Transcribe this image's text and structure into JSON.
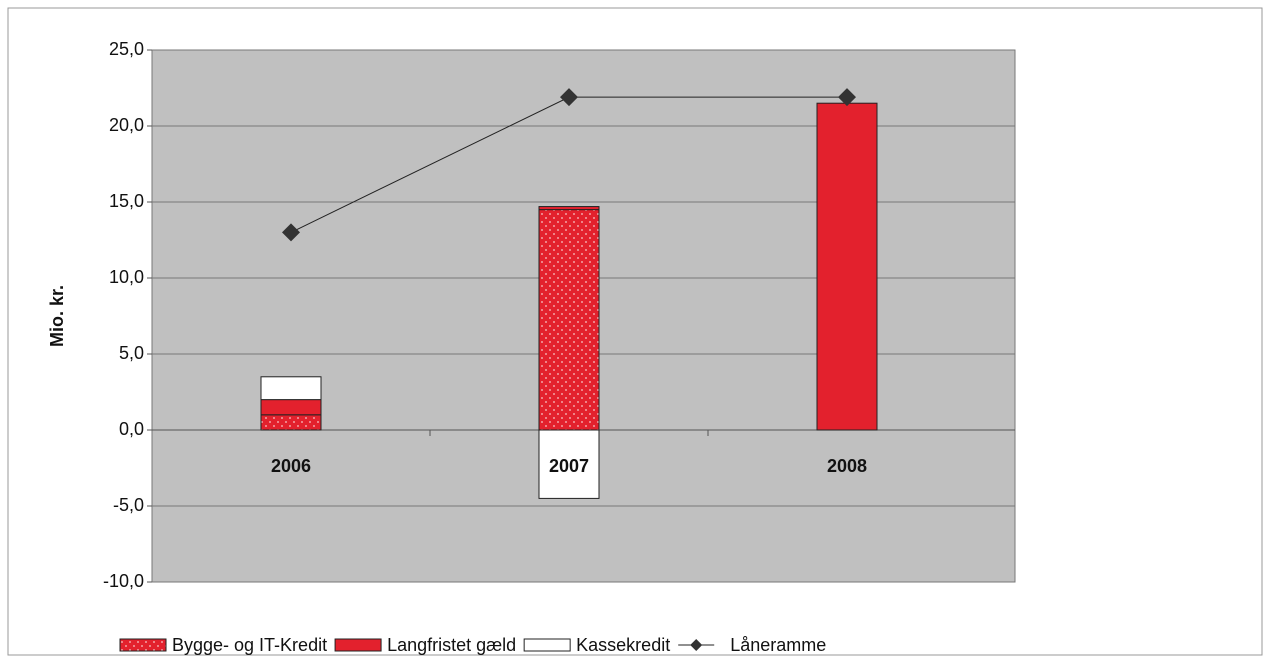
{
  "chart_data": {
    "type": "stacked_bar_line",
    "ylabel": "Mio. kr.",
    "categories": [
      "2006",
      "2007",
      "2008"
    ],
    "series": [
      {
        "name": "Bygge- og IT-Kredit",
        "color": "#e3212d",
        "pattern": "dotted",
        "values": [
          1.0,
          14.5,
          0
        ]
      },
      {
        "name": "Langfristet gæld",
        "color": "#e3212d",
        "values": [
          1.0,
          0.2,
          21.5
        ]
      },
      {
        "name": "Kassekredit",
        "color": "#ffffff",
        "values": [
          1.5,
          -4.5,
          0
        ]
      },
      {
        "name": "Låneramme",
        "color": "#333333",
        "kind": "line",
        "values": [
          13.0,
          21.9,
          21.9
        ]
      }
    ],
    "ylim": [
      -10,
      25
    ],
    "yticks": [
      {
        "value": -10,
        "label": "-10,0"
      },
      {
        "value": -5,
        "label": "-5,0"
      },
      {
        "value": 0,
        "label": "0,0"
      },
      {
        "value": 5,
        "label": "5,0"
      },
      {
        "value": 10,
        "label": "10,0"
      },
      {
        "value": 15,
        "label": "15,0"
      },
      {
        "value": 20,
        "label": "20,0"
      },
      {
        "value": 25,
        "label": "25,0"
      }
    ],
    "grid": true,
    "legend": "bottom"
  }
}
